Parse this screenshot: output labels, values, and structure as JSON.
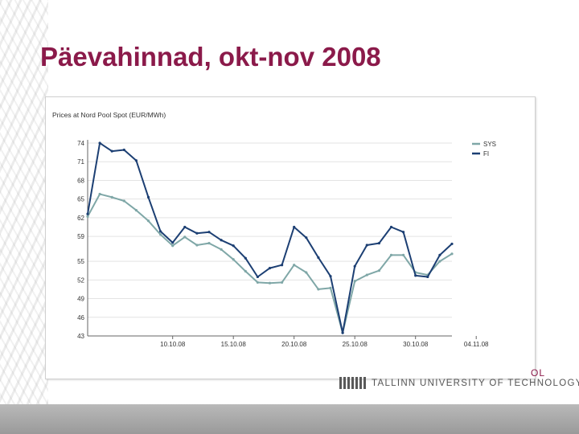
{
  "slide": {
    "title": "Päevahinnad, okt-nov 2008",
    "footer_logo_text": "TALLINN UNIVERSITY OF TECHNOLOGY",
    "footer_logo_fragment": "OL"
  },
  "colors": {
    "title": "#8b1a4a",
    "series_sys": "#7fa7a7",
    "series_fi": "#1c3f73"
  },
  "chart_data": {
    "type": "line",
    "title": "Prices at Nord Pool Spot (EUR/MWh)",
    "xlabel": "",
    "ylabel": "",
    "ylim": [
      43,
      74
    ],
    "yticks": [
      43,
      46,
      49,
      52,
      55,
      59,
      62,
      65,
      68,
      71,
      74
    ],
    "ytick_labels": [
      "43",
      "46",
      "49",
      "52",
      "55",
      "59",
      "62",
      "65",
      "68",
      "71",
      "74"
    ],
    "xticks": [
      {
        "index": 7,
        "label": "10.10.08"
      },
      {
        "index": 12,
        "label": "15.10.08"
      },
      {
        "index": 17,
        "label": "20.10.08"
      },
      {
        "index": 22,
        "label": "25.10.08"
      },
      {
        "index": 27,
        "label": "30.10.08"
      },
      {
        "index": 32,
        "label": "04.11.08"
      }
    ],
    "grid": true,
    "legend_position": "right",
    "series": [
      {
        "name": "SYS",
        "values": [
          62.2,
          65.8,
          65.3,
          64.7,
          63.2,
          61.5,
          59.3,
          57.5,
          58.9,
          57.6,
          57.9,
          56.9,
          55.3,
          53.4,
          51.6,
          51.5,
          51.6,
          54.4,
          53.2,
          50.5,
          50.7,
          43.5,
          51.8,
          52.8,
          53.5,
          56.0,
          56.0,
          53.2,
          52.8,
          55.0,
          56.2
        ]
      },
      {
        "name": "FI",
        "values": [
          62.6,
          74.0,
          72.7,
          72.9,
          71.2,
          65.3,
          59.8,
          58.0,
          60.5,
          59.5,
          59.7,
          58.4,
          57.5,
          55.5,
          52.5,
          53.9,
          54.4,
          60.5,
          58.8,
          55.6,
          52.6,
          43.5,
          54.2,
          57.6,
          57.9,
          60.5,
          59.7,
          52.7,
          52.5,
          56.0,
          57.8
        ]
      }
    ]
  }
}
